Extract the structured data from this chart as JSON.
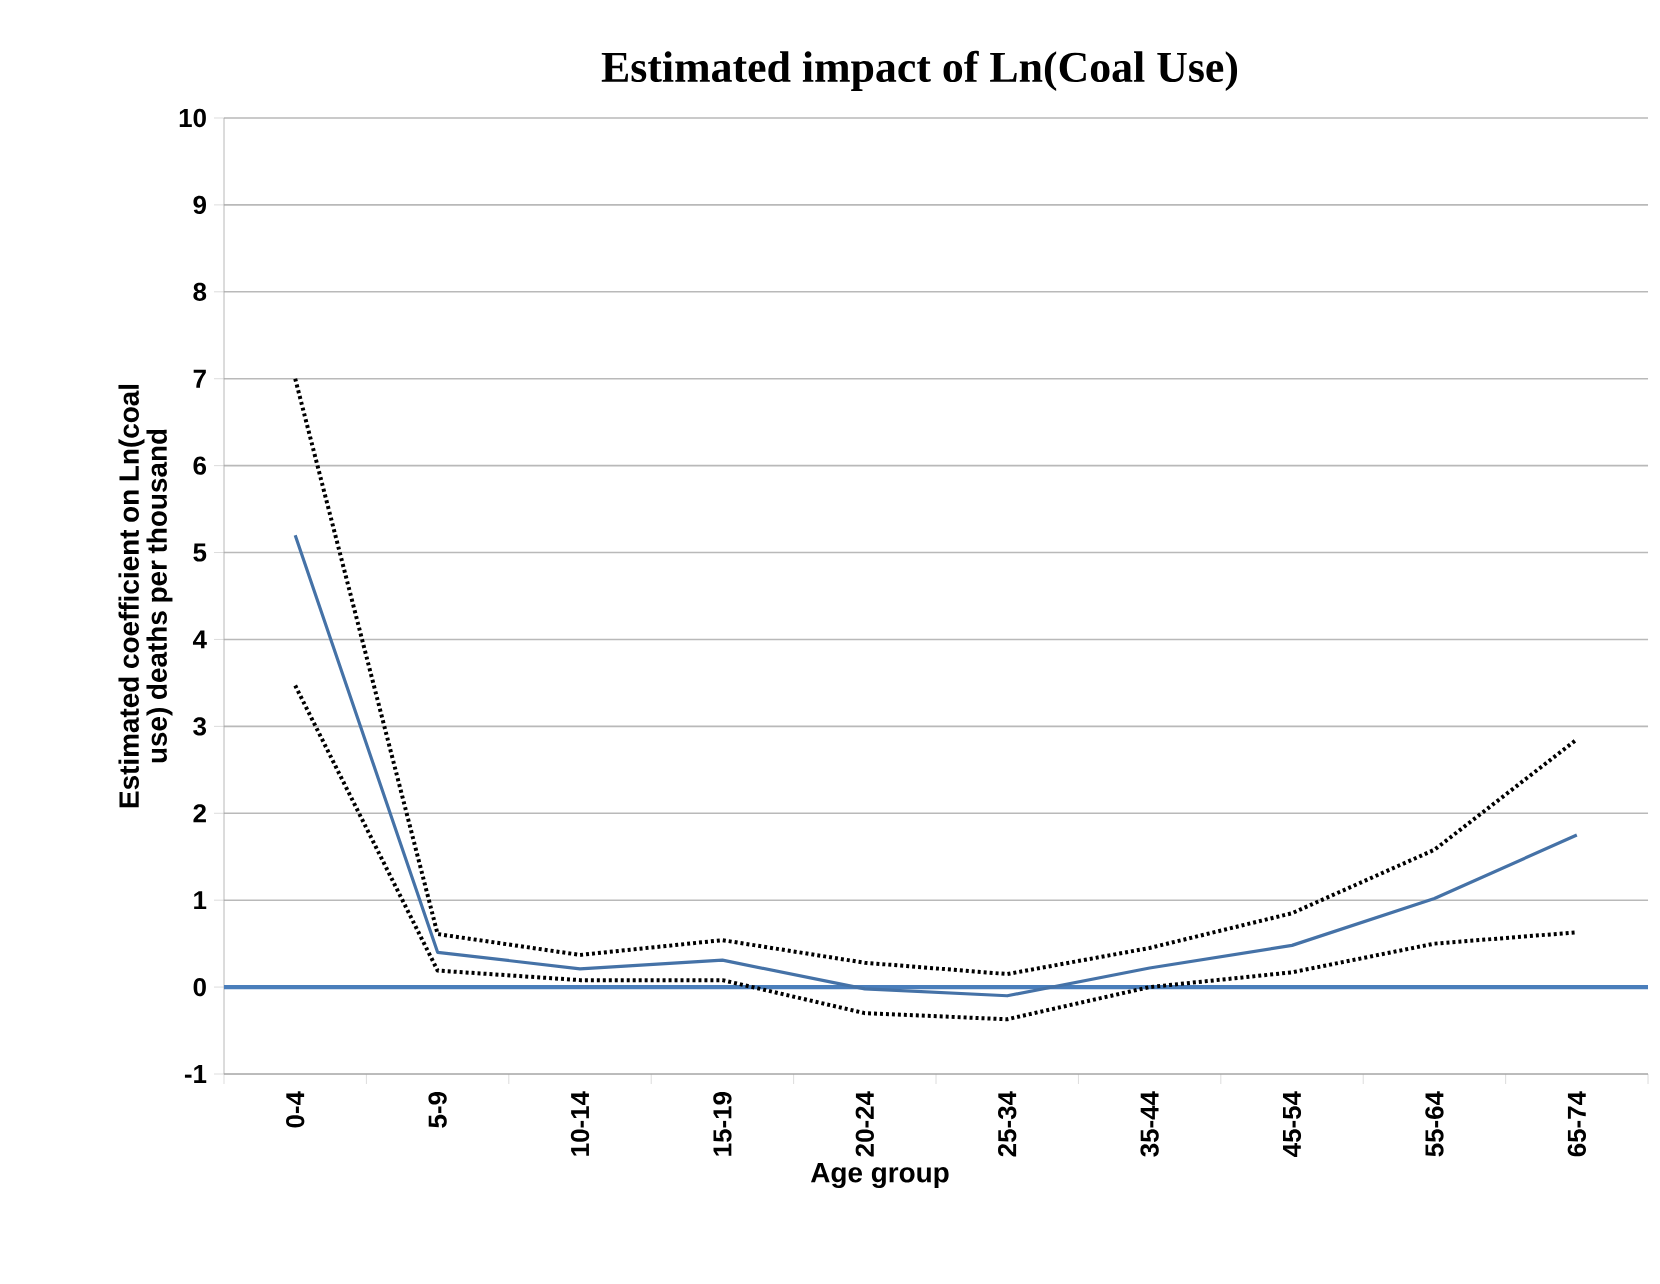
{
  "chart_data": {
    "type": "line",
    "title": "Estimated impact of Ln(Coal Use)",
    "xlabel": "Age group",
    "ylabel": "Estimated coefficient on Ln(coal use) deaths per thousand",
    "categories": [
      "0-4",
      "5-9",
      "10-14",
      "15-19",
      "20-24",
      "25-34",
      "35-44",
      "45-54",
      "55-64",
      "65-74"
    ],
    "series": [
      {
        "color": "#4572a7",
        "line_style": "solid",
        "values": [
          5.2,
          0.4,
          0.21,
          0.31,
          -0.02,
          -0.1,
          0.22,
          0.48,
          1.02,
          1.75
        ]
      },
      {
        "color": "#000000",
        "line_style": "dotted",
        "values": [
          7.0,
          0.61,
          0.37,
          0.54,
          0.28,
          0.15,
          0.45,
          0.85,
          1.58,
          2.85
        ]
      },
      {
        "color": "#000000",
        "line_style": "dotted",
        "values": [
          3.47,
          0.19,
          0.08,
          0.08,
          -0.3,
          -0.37,
          0.0,
          0.17,
          0.5,
          0.63
        ]
      }
    ],
    "ylim": [
      -1,
      10
    ],
    "yticks": [
      -1,
      0,
      1,
      2,
      3,
      4,
      5,
      6,
      7,
      8,
      9,
      10
    ],
    "grid": "y",
    "marker": "none",
    "ref_lines": [
      {
        "axis": "y",
        "value": 0,
        "color": "#4a7ebb"
      }
    ]
  }
}
